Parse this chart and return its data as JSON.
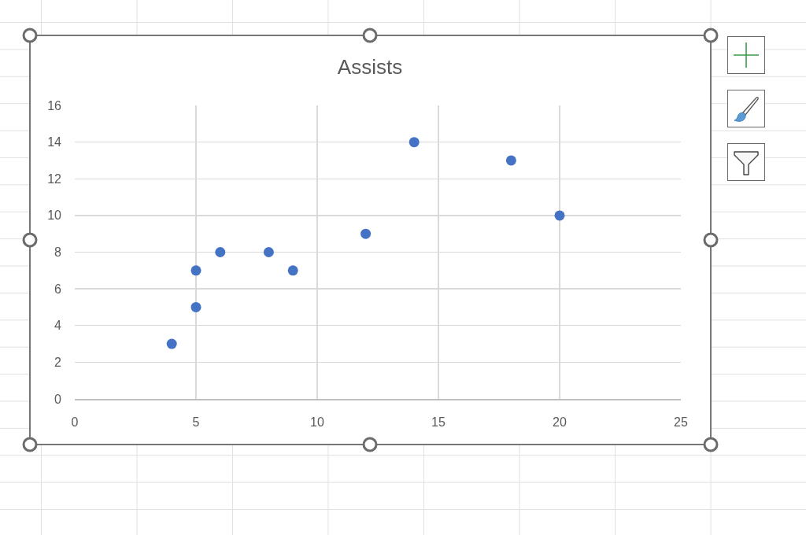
{
  "chart_data": {
    "type": "scatter",
    "title": "Assists",
    "x": [
      4,
      5,
      5,
      6,
      8,
      9,
      12,
      14,
      18,
      20
    ],
    "values": [
      3,
      7,
      5,
      8,
      8,
      7,
      9,
      14,
      13,
      10
    ],
    "color": "#4472c4",
    "marker": "circle",
    "xlim": [
      0,
      25
    ],
    "xticks": [
      0,
      5,
      10,
      15,
      20,
      25
    ],
    "ylim": [
      0,
      16
    ],
    "yticks": [
      0,
      2,
      4,
      6,
      8,
      10,
      12,
      14,
      16
    ],
    "grid": true
  }
}
